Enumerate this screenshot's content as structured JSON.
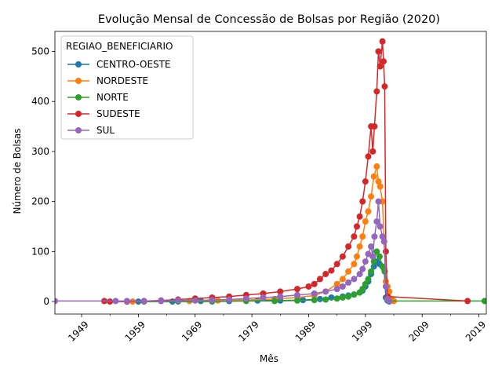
{
  "chart_data": {
    "type": "line",
    "title": "Evolução Mensal de Concessão de Bolsas por Região (2020)",
    "xlabel": "Mês",
    "ylabel": "Número de Bolsas",
    "xlim": [
      1944.3,
      2020.3
    ],
    "ylim": [
      -25,
      540
    ],
    "x_ticks": [
      1949,
      1959,
      1969,
      1979,
      1989,
      1999,
      2009,
      2019
    ],
    "y_ticks": [
      0,
      100,
      200,
      300,
      400,
      500
    ],
    "grid": false,
    "legend": {
      "title": "REGIAO_BENEFICIARIO",
      "placement": "top-left"
    },
    "series": [
      {
        "name": "CENTRO-OESTE",
        "color": "#1f77b4",
        "x": [
          1959,
          1965,
          1970,
          1975,
          1980,
          1984,
          1988,
          1991,
          1993,
          1995,
          1996,
          1997,
          1998,
          1998.5,
          1999,
          1999.5,
          2000,
          2000.5,
          2001,
          2001.5,
          2002,
          2002.3,
          2002.6,
          2002.9,
          2003.2
        ],
        "y": [
          0,
          0,
          1,
          1,
          2,
          2,
          3,
          5,
          8,
          10,
          12,
          14,
          18,
          22,
          30,
          40,
          55,
          70,
          80,
          75,
          70,
          65,
          8,
          2,
          0
        ]
      },
      {
        "name": "NORDESTE",
        "color": "#ff7f0e",
        "x": [
          1958,
          1963,
          1968,
          1973,
          1978,
          1983,
          1987,
          1990,
          1992,
          1994,
          1995,
          1996,
          1997,
          1997.5,
          1998,
          1998.5,
          1999,
          1999.5,
          2000,
          2000.5,
          2001,
          2001.3,
          2001.6,
          2002,
          2002.3,
          2002.6,
          2002.9,
          2003.2,
          2003.6,
          2004
        ],
        "y": [
          0,
          1,
          1,
          2,
          3,
          5,
          8,
          12,
          20,
          35,
          45,
          60,
          75,
          90,
          110,
          130,
          160,
          180,
          210,
          250,
          270,
          240,
          230,
          200,
          120,
          40,
          30,
          20,
          5,
          1
        ]
      },
      {
        "name": "NORTE",
        "color": "#2ca02c",
        "x": [
          1960,
          1966,
          1972,
          1978,
          1983,
          1987,
          1990,
          1992,
          1994,
          1995,
          1996,
          1997,
          1998,
          1998.5,
          1999,
          1999.5,
          2000,
          2000.5,
          2001,
          2001.5,
          2002,
          2002.4,
          2002.8,
          2003.2,
          2020
        ],
        "y": [
          0,
          0,
          0,
          1,
          1,
          2,
          3,
          4,
          6,
          8,
          10,
          14,
          18,
          25,
          35,
          45,
          60,
          80,
          100,
          90,
          70,
          60,
          5,
          1,
          1
        ]
      },
      {
        "name": "SUDESTE",
        "color": "#d62728",
        "x": [
          1953,
          1954,
          1957,
          1960,
          1963,
          1966,
          1969,
          1972,
          1975,
          1978,
          1981,
          1984,
          1987,
          1989,
          1990,
          1991,
          1992,
          1993,
          1994,
          1995,
          1996,
          1997,
          1997.5,
          1998,
          1998.5,
          1999,
          1999.5,
          2000,
          2000.3,
          2000.6,
          2001,
          2001.3,
          2001.6,
          2002,
          2002.2,
          2002.4,
          2002.6,
          2002.9,
          2017
        ],
        "y": [
          1,
          0,
          0,
          1,
          2,
          4,
          6,
          8,
          10,
          13,
          16,
          20,
          25,
          30,
          35,
          45,
          55,
          62,
          75,
          90,
          110,
          130,
          150,
          170,
          200,
          240,
          290,
          350,
          300,
          350,
          420,
          500,
          470,
          520,
          480,
          430,
          100,
          10,
          1
        ]
      },
      {
        "name": "SUL",
        "color": "#9467bd",
        "x": [
          1944.3,
          1955,
          1957,
          1960,
          1963,
          1966,
          1969,
          1972,
          1975,
          1978,
          1981,
          1984,
          1987,
          1990,
          1992,
          1994,
          1995,
          1996,
          1997,
          1998,
          1998.5,
          1999,
          1999.5,
          2000,
          2000.3,
          2000.6,
          2001,
          2001.3,
          2001.6,
          2002,
          2002.3,
          2002.6,
          2002.9,
          2003.2
        ],
        "y": [
          1,
          1,
          1,
          1,
          1,
          2,
          2,
          3,
          4,
          6,
          8,
          10,
          13,
          16,
          20,
          25,
          30,
          38,
          45,
          55,
          65,
          80,
          95,
          110,
          90,
          130,
          160,
          200,
          150,
          130,
          120,
          30,
          5,
          1
        ]
      }
    ]
  }
}
